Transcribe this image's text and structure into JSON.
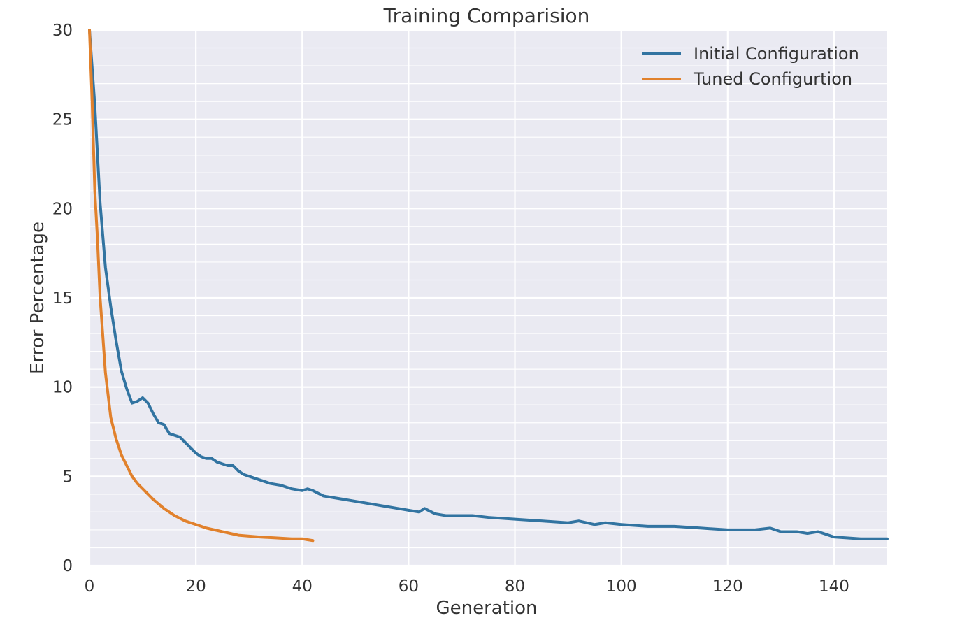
{
  "chart_data": {
    "type": "line",
    "title": "Training Comparision",
    "xlabel": "Generation",
    "ylabel": "Error Percentage",
    "xlim": [
      0,
      150
    ],
    "ylim": [
      0,
      30
    ],
    "xticks": [
      0,
      20,
      40,
      60,
      80,
      100,
      120,
      140
    ],
    "yticks": [
      0,
      5,
      10,
      15,
      20,
      25,
      30
    ],
    "grid": true,
    "legend_position": "top-right",
    "background_color": "#eaeaf2",
    "series": [
      {
        "name": "Initial Configuration",
        "color": "#3274a1",
        "x": [
          0,
          1,
          2,
          3,
          4,
          5,
          6,
          7,
          8,
          9,
          10,
          11,
          12,
          13,
          14,
          15,
          16,
          17,
          18,
          19,
          20,
          21,
          22,
          23,
          24,
          25,
          26,
          27,
          28,
          29,
          30,
          32,
          34,
          36,
          38,
          40,
          41,
          42,
          44,
          46,
          48,
          50,
          52,
          54,
          56,
          58,
          60,
          62,
          63,
          65,
          67,
          70,
          72,
          75,
          80,
          85,
          90,
          92,
          95,
          97,
          100,
          105,
          110,
          115,
          120,
          125,
          128,
          130,
          133,
          135,
          137,
          138,
          140,
          145,
          150
        ],
        "y": [
          30.0,
          25.8,
          20.3,
          16.7,
          14.5,
          12.6,
          10.9,
          9.9,
          9.1,
          9.2,
          9.4,
          9.1,
          8.5,
          8.0,
          7.9,
          7.4,
          7.3,
          7.2,
          6.9,
          6.6,
          6.3,
          6.1,
          6.0,
          6.0,
          5.8,
          5.7,
          5.6,
          5.6,
          5.3,
          5.1,
          5.0,
          4.8,
          4.6,
          4.5,
          4.3,
          4.2,
          4.3,
          4.2,
          3.9,
          3.8,
          3.7,
          3.6,
          3.5,
          3.4,
          3.3,
          3.2,
          3.1,
          3.0,
          3.2,
          2.9,
          2.8,
          2.8,
          2.8,
          2.7,
          2.6,
          2.5,
          2.4,
          2.5,
          2.3,
          2.4,
          2.3,
          2.2,
          2.2,
          2.1,
          2.0,
          2.0,
          2.1,
          1.9,
          1.9,
          1.8,
          1.9,
          1.8,
          1.6,
          1.5,
          1.5
        ]
      },
      {
        "name": "Tuned Configurtion",
        "color": "#e1812c",
        "x": [
          0,
          0.5,
          1,
          1.5,
          2,
          3,
          4,
          5,
          6,
          7,
          8,
          9,
          10,
          12,
          14,
          16,
          18,
          20,
          22,
          25,
          28,
          30,
          32,
          35,
          38,
          40,
          41,
          42
        ],
        "y": [
          30.0,
          26.0,
          21.0,
          18.3,
          15.0,
          10.8,
          8.3,
          7.1,
          6.2,
          5.6,
          5.0,
          4.6,
          4.3,
          3.7,
          3.2,
          2.8,
          2.5,
          2.3,
          2.1,
          1.9,
          1.7,
          1.65,
          1.6,
          1.55,
          1.5,
          1.5,
          1.45,
          1.4
        ]
      }
    ]
  }
}
